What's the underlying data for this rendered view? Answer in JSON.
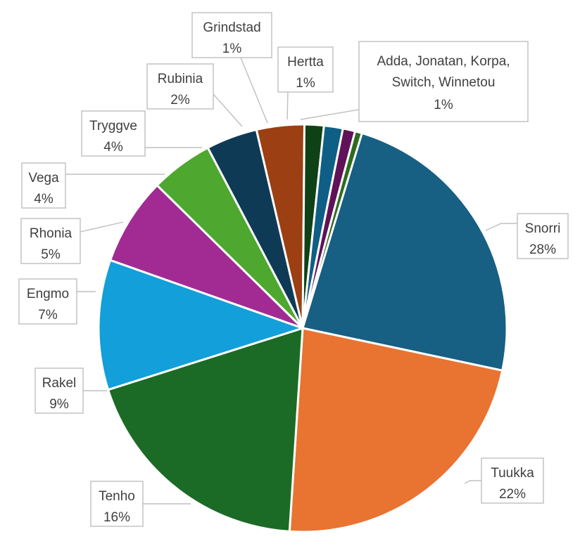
{
  "chart_data": {
    "type": "pie",
    "title": "",
    "slices": [
      {
        "label": "Snorri",
        "value": 28,
        "value_label": "28%",
        "color": "#175f83"
      },
      {
        "label": "Tuukka",
        "value": 22,
        "value_label": "22%",
        "color": "#e97331"
      },
      {
        "label": "Tenho",
        "value": 16,
        "value_label": "16%",
        "color": "#1b6b26"
      },
      {
        "label": "Rakel",
        "value": 9,
        "value_label": "9%",
        "color": "#139fd9"
      },
      {
        "label": "Engmo",
        "value": 7,
        "value_label": "7%",
        "color": "#a12b93"
      },
      {
        "label": "Rhonia",
        "value": 5,
        "value_label": "5%",
        "color": "#4ea72e"
      },
      {
        "label": "Vega",
        "value": 4,
        "value_label": "4%",
        "color": "#0f3a56"
      },
      {
        "label": "Tryggve",
        "value": 4,
        "value_label": "4%",
        "color": "#9c3f12"
      },
      {
        "label": "Rubinia",
        "value": 2,
        "value_label": "2%",
        "color": "#0f4117"
      },
      {
        "label": "Grindstad",
        "value": 1,
        "value_label": "1%",
        "color": "#0f5e86"
      },
      {
        "label": "Hertta",
        "value": 1,
        "value_label": "1%",
        "color": "#5f1257"
      },
      {
        "label": "Adda, Jonatan, Korpa, Switch, Winnetou",
        "value": 1,
        "value_label": "1%",
        "color": "#2e6b1f"
      }
    ]
  }
}
